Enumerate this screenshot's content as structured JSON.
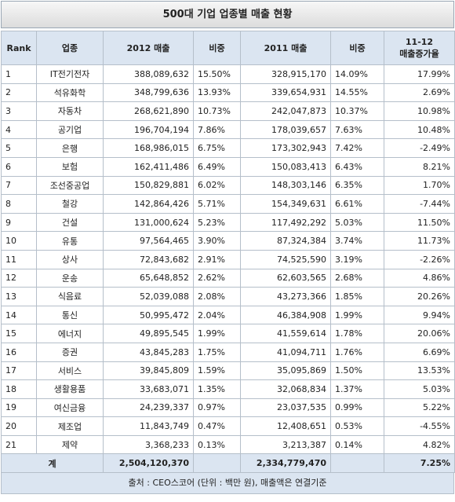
{
  "title": "500대 기업 업종별 매출 현황",
  "table": {
    "header": [
      "Rank",
      "업종",
      "2012 매출",
      "비중",
      "2011 매출",
      "비중",
      [
        "11-12",
        "매출증가율"
      ]
    ],
    "rows": [
      [
        "1",
        "IT전기전자",
        "388,089,632",
        "15.50%",
        "328,915,170",
        "14.09%",
        "17.99%"
      ],
      [
        "2",
        "석유화학",
        "348,799,636",
        "13.93%",
        "339,654,931",
        "14.55%",
        "2.69%"
      ],
      [
        "3",
        "자동차",
        "268,621,890",
        "10.73%",
        "242,047,873",
        "10.37%",
        "10.98%"
      ],
      [
        "4",
        "공기업",
        "196,704,194",
        "7.86%",
        "178,039,657",
        "7.63%",
        "10.48%"
      ],
      [
        "5",
        "은행",
        "168,986,015",
        "6.75%",
        "173,302,943",
        "7.42%",
        "-2.49%"
      ],
      [
        "6",
        "보험",
        "162,411,486",
        "6.49%",
        "150,083,413",
        "6.43%",
        "8.21%"
      ],
      [
        "7",
        "조선중공업",
        "150,829,881",
        "6.02%",
        "148,303,146",
        "6.35%",
        "1.70%"
      ],
      [
        "8",
        "철강",
        "142,864,426",
        "5.71%",
        "154,349,631",
        "6.61%",
        "-7.44%"
      ],
      [
        "9",
        "건설",
        "131,000,624",
        "5.23%",
        "117,492,292",
        "5.03%",
        "11.50%"
      ],
      [
        "10",
        "유통",
        "97,564,465",
        "3.90%",
        "87,324,384",
        "3.74%",
        "11.73%"
      ],
      [
        "11",
        "상사",
        "72,843,682",
        "2.91%",
        "74,525,590",
        "3.19%",
        "-2.26%"
      ],
      [
        "12",
        "운송",
        "65,648,852",
        "2.62%",
        "62,603,565",
        "2.68%",
        "4.86%"
      ],
      [
        "13",
        "식음료",
        "52,039,088",
        "2.08%",
        "43,273,366",
        "1.85%",
        "20.26%"
      ],
      [
        "14",
        "통신",
        "50,995,472",
        "2.04%",
        "46,384,908",
        "1.99%",
        "9.94%"
      ],
      [
        "15",
        "에너지",
        "49,895,545",
        "1.99%",
        "41,559,614",
        "1.78%",
        "20.06%"
      ],
      [
        "16",
        "증권",
        "43,845,283",
        "1.75%",
        "41,094,711",
        "1.76%",
        "6.69%"
      ],
      [
        "17",
        "서비스",
        "39,845,809",
        "1.59%",
        "35,095,869",
        "1.50%",
        "13.53%"
      ],
      [
        "18",
        "생활용품",
        "33,683,071",
        "1.35%",
        "32,068,834",
        "1.37%",
        "5.03%"
      ],
      [
        "19",
        "여신금융",
        "24,239,337",
        "0.97%",
        "23,037,535",
        "0.99%",
        "5.22%"
      ],
      [
        "20",
        "제조업",
        "11,843,749",
        "0.47%",
        "12,408,651",
        "0.53%",
        "-4.55%"
      ],
      [
        "21",
        "제약",
        "3,368,233",
        "0.13%",
        "3,213,387",
        "0.14%",
        "4.82%"
      ]
    ],
    "total": {
      "label": "계",
      "sales_2012": "2,504,120,370",
      "sales_2011": "2,334,779,470",
      "growth": "7.25%"
    }
  },
  "footer": "출처 : CEO스코어 (단위 : 백만 원), 매출액은 연결기준"
}
